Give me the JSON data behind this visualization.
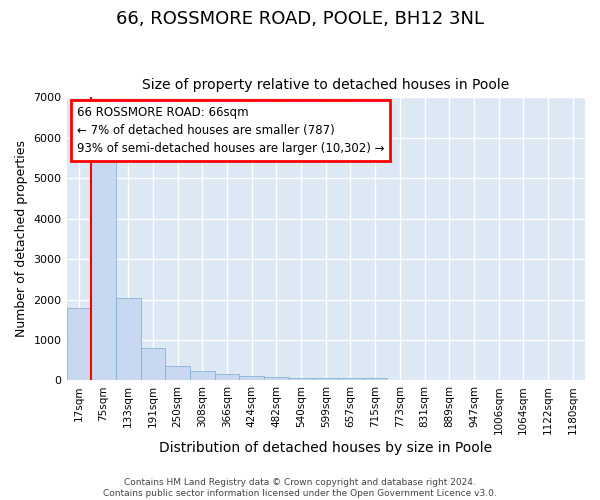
{
  "title": "66, ROSSMORE ROAD, POOLE, BH12 3NL",
  "subtitle": "Size of property relative to detached houses in Poole",
  "xlabel": "Distribution of detached houses by size in Poole",
  "ylabel": "Number of detached properties",
  "bar_color": "#c8d8f0",
  "bar_edge_color": "#7aaad0",
  "categories": [
    "17sqm",
    "75sqm",
    "133sqm",
    "191sqm",
    "250sqm",
    "308sqm",
    "366sqm",
    "424sqm",
    "482sqm",
    "540sqm",
    "599sqm",
    "657sqm",
    "715sqm",
    "773sqm",
    "831sqm",
    "889sqm",
    "947sqm",
    "1006sqm",
    "1064sqm",
    "1122sqm",
    "1180sqm"
  ],
  "values": [
    1780,
    5750,
    2050,
    800,
    360,
    240,
    150,
    110,
    80,
    60,
    55,
    50,
    60,
    5,
    5,
    5,
    5,
    5,
    5,
    5,
    5
  ],
  "ylim": [
    0,
    7000
  ],
  "yticks": [
    0,
    1000,
    2000,
    3000,
    4000,
    5000,
    6000,
    7000
  ],
  "annotation_line1": "66 ROSSMORE ROAD: 66sqm",
  "annotation_line2": "← 7% of detached houses are smaller (787)",
  "annotation_line3": "93% of semi-detached houses are larger (10,302) →",
  "red_line_x": 0.5,
  "footer_text": "Contains HM Land Registry data © Crown copyright and database right 2024.\nContains public sector information licensed under the Open Government Licence v3.0.",
  "bg_color": "#ffffff",
  "plot_bg_color": "#dde8f5",
  "grid_color": "#ffffff",
  "title_fontsize": 13,
  "subtitle_fontsize": 10,
  "tick_fontsize": 7.5,
  "ylabel_fontsize": 9,
  "xlabel_fontsize": 10
}
